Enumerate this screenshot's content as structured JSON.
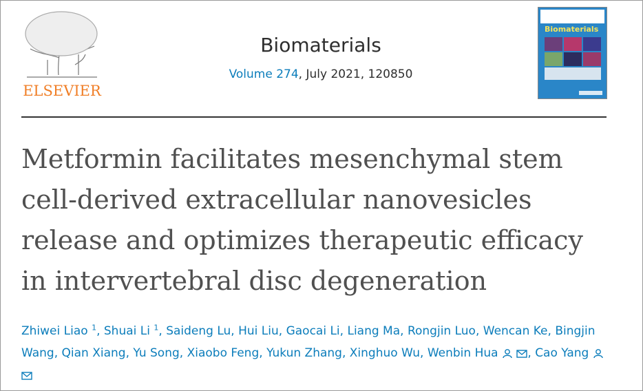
{
  "header": {
    "publisher": "ELSEVIER",
    "journal": "Biomaterials",
    "volume": "Volume 274",
    "issue_info": ", July 2021, 120850",
    "cover_title": "Biomaterials"
  },
  "article": {
    "title": "Metformin facilitates mesenchymal stem cell-derived extracellular nanovesicles release and optimizes therapeutic efficacy in intervertebral disc degeneration",
    "separator": ",",
    "authors": [
      {
        "name": "Zhiwei Liao",
        "sup": "1"
      },
      {
        "name": "Shuai Li",
        "sup": "1"
      },
      {
        "name": "Saideng Lu"
      },
      {
        "name": "Hui Liu"
      },
      {
        "name": "Gaocai Li"
      },
      {
        "name": "Liang Ma"
      },
      {
        "name": "Rongjin Luo"
      },
      {
        "name": "Wencan Ke"
      },
      {
        "name": "Bingjin Wang"
      },
      {
        "name": "Qian Xiang"
      },
      {
        "name": "Yu Song"
      },
      {
        "name": "Xiaobo Feng"
      },
      {
        "name": "Yukun Zhang"
      },
      {
        "name": "Xinghuo Wu"
      },
      {
        "name": "Wenbin Hua",
        "corresponding": true
      },
      {
        "name": "Cao Yang",
        "corresponding": true
      }
    ]
  }
}
